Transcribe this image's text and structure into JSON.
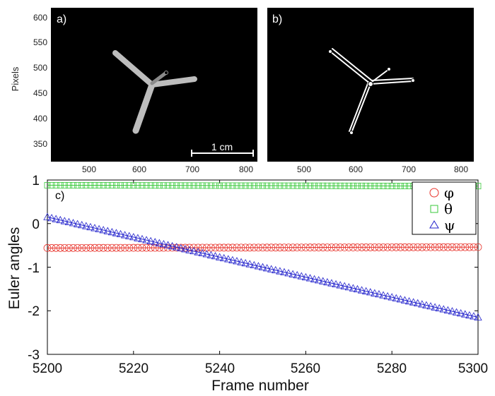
{
  "image_panels": {
    "panel_a": {
      "tag": "a)",
      "scale_label": "1 cm"
    },
    "panel_b": {
      "tag": "b)"
    },
    "y_label": "Pixels",
    "x_ticks": [
      "500",
      "600",
      "700",
      "800"
    ],
    "y_ticks": [
      "600",
      "550",
      "500",
      "450",
      "400",
      "350"
    ]
  },
  "chart_data": {
    "type": "scatter",
    "tag": "c)",
    "xlabel": "Frame number",
    "ylabel": "Euler angles",
    "xlim": [
      5200,
      5300
    ],
    "ylim": [
      -3,
      1
    ],
    "x_ticks": [
      "5200",
      "5220",
      "5240",
      "5260",
      "5280",
      "5300"
    ],
    "y_ticks": [
      "1",
      "0",
      "-1",
      "-2",
      "-3"
    ],
    "legend_position": "top-right",
    "series": [
      {
        "name": "φ",
        "marker": "circle",
        "color": "#e8332b",
        "x_start": 5200,
        "x_end": 5300,
        "step": 1,
        "values_start": -0.56,
        "values_end": -0.54
      },
      {
        "name": "θ",
        "marker": "square",
        "color": "#39c83b",
        "x_start": 5200,
        "x_end": 5300,
        "step": 1,
        "values_start": 0.88,
        "values_end": 0.86
      },
      {
        "name": "ψ",
        "marker": "triangle",
        "color": "#2222cc",
        "x_start": 5200,
        "x_end": 5300,
        "step": 1,
        "values_start": 0.15,
        "values_end": -2.15
      }
    ]
  }
}
